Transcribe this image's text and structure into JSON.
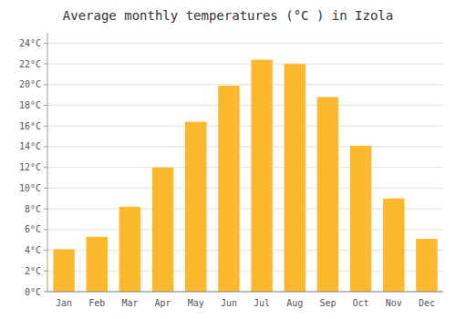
{
  "chart_data": {
    "type": "bar",
    "title": "Average monthly temperatures (°C ) in Izola",
    "categories": [
      "Jan",
      "Feb",
      "Mar",
      "Apr",
      "May",
      "Jun",
      "Jul",
      "Aug",
      "Sep",
      "Oct",
      "Nov",
      "Dec"
    ],
    "values": [
      4.1,
      5.3,
      8.2,
      12.0,
      16.4,
      19.9,
      22.4,
      22.0,
      18.8,
      14.1,
      9.0,
      5.1
    ],
    "color": "#FDB92E",
    "ylim": [
      0,
      25
    ],
    "yticks": [
      {
        "value": 0,
        "label": "0°C"
      },
      {
        "value": 2,
        "label": "2°C"
      },
      {
        "value": 4,
        "label": "4°C"
      },
      {
        "value": 6,
        "label": "6°C"
      },
      {
        "value": 8,
        "label": "8°C"
      },
      {
        "value": 10,
        "label": "10°C"
      },
      {
        "value": 12,
        "label": "12°C"
      },
      {
        "value": 14,
        "label": "14°C"
      },
      {
        "value": 16,
        "label": "16°C"
      },
      {
        "value": 18,
        "label": "18°C"
      },
      {
        "value": 20,
        "label": "20°C"
      },
      {
        "value": 22,
        "label": "22°C"
      },
      {
        "value": 24,
        "label": "24°C"
      }
    ],
    "grid": true
  }
}
